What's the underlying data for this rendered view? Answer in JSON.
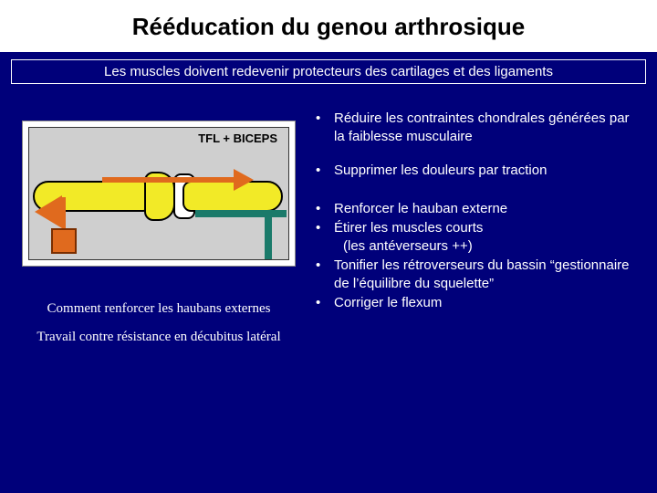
{
  "colors": {
    "slide_bg": "#00007a",
    "title_bg": "#ffffff",
    "title_text": "#000000",
    "body_text": "#ffffff",
    "bone_fill": "#f2ea27",
    "arrow": "#e06a1e",
    "table": "#1a7a6a",
    "figure_bg": "#cfcfcf"
  },
  "title": "Rééducation du genou arthrosique",
  "subtitle": "Les muscles doivent redevenir protecteurs des cartilages et des ligaments",
  "figure": {
    "label": "TFL + BICEPS"
  },
  "captions": {
    "line1": "Comment renforcer les haubans externes",
    "line2": "Travail contre résistance en décubitus latéral"
  },
  "bullets_group1": [
    "Réduire les contraintes chondrales générées par la faiblesse musculaire",
    "Supprimer les douleurs par traction"
  ],
  "bullets_group2": [
    {
      "text": "Renforcer le hauban externe"
    },
    {
      "text": "Étirer les muscles courts",
      "sub": "(les antéverseurs ++)"
    },
    {
      "text": "Tonifier les rétroverseurs du bassin “gestionnaire de l’équilibre du squelette”"
    },
    {
      "text": "Corriger le flexum"
    }
  ]
}
